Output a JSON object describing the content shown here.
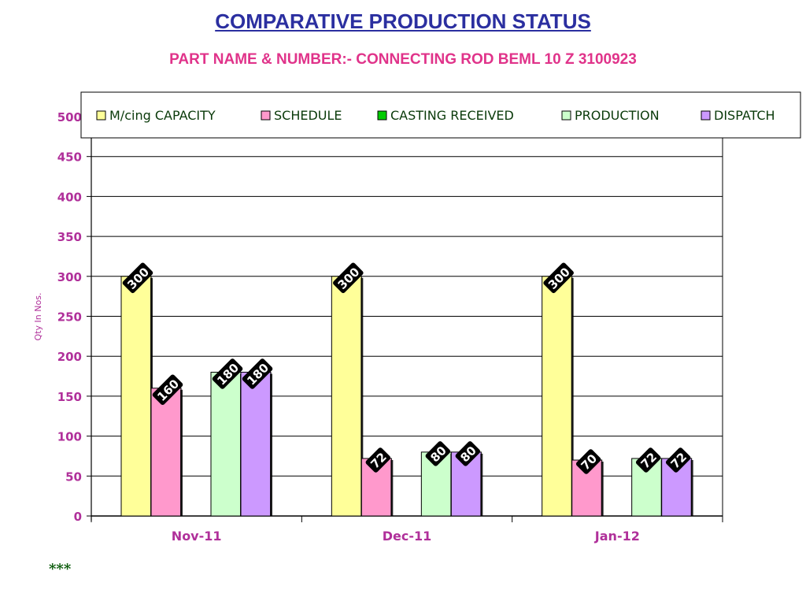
{
  "footer_note": "***",
  "chart_data": {
    "type": "bar",
    "title": "COMPARATIVE PRODUCTION STATUS",
    "subtitle": "PART NAME & NUMBER:- CONNECTING ROD BEML 10 Z 3100923",
    "ylabel": "Qty In  Nos.",
    "xlabel": "",
    "ylim": [
      0,
      500
    ],
    "yticks": [
      "0",
      "50",
      "100",
      "150",
      "200",
      "250",
      "300",
      "350",
      "400",
      "450",
      "500"
    ],
    "grid": true,
    "legend_position": "top",
    "categories": [
      "Nov-11",
      "Dec-11",
      "Jan-12"
    ],
    "series": [
      {
        "name": "M/cing CAPACITY",
        "color": "#ffff99",
        "values": [
          300,
          300,
          300
        ],
        "labels": [
          "300",
          "300",
          "300"
        ]
      },
      {
        "name": "SCHEDULE",
        "color": "#ff99cc",
        "values": [
          160,
          72,
          70
        ],
        "labels": [
          "160",
          "72",
          "70"
        ]
      },
      {
        "name": "CASTING RECEIVED",
        "color": "#00cc00",
        "values": [
          0,
          0,
          0
        ],
        "labels": [
          "",
          "",
          ""
        ]
      },
      {
        "name": "PRODUCTION",
        "color": "#ccffcc",
        "values": [
          180,
          80,
          72
        ],
        "labels": [
          "180",
          "80",
          "72"
        ]
      },
      {
        "name": "DISPATCH",
        "color": "#cc99ff",
        "values": [
          180,
          80,
          72
        ],
        "labels": [
          "180",
          "80",
          "72"
        ]
      }
    ]
  }
}
